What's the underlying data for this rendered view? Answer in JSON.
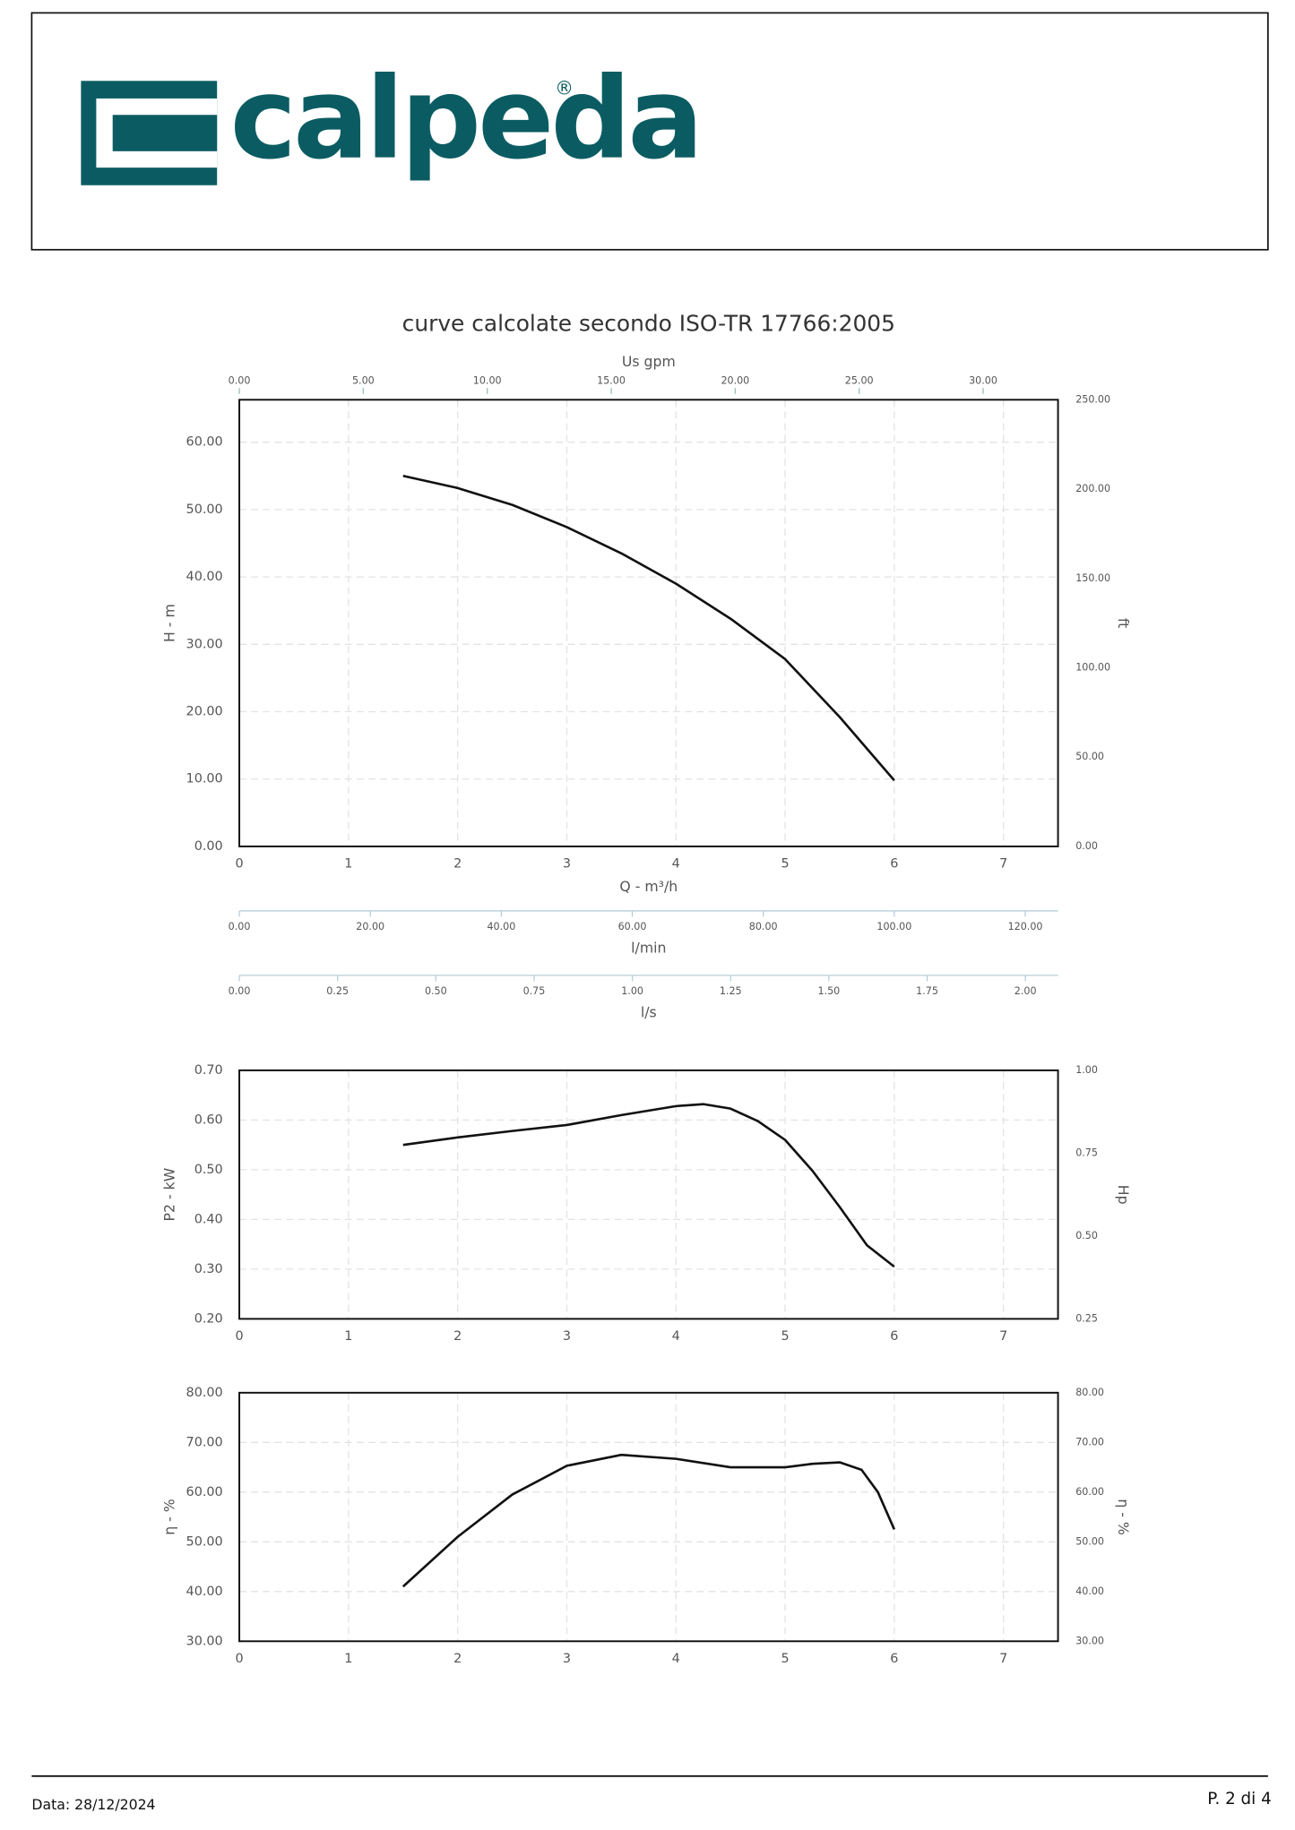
{
  "header": {
    "logo": "calpeda",
    "registered": "®"
  },
  "footer": {
    "date": "Data: 28/12/2024",
    "page": "P. 2 di 4"
  },
  "chart_data": [
    {
      "type": "line",
      "title": "curve calcolate secondo ISO-TR 17766:2005",
      "xlabel": "Q - m³/h",
      "ylabel": "H - m",
      "y2label": "ft",
      "x2label": "Us gpm",
      "grid": true,
      "xlim": [
        0,
        7.5
      ],
      "xticks": [
        0,
        1,
        2,
        3,
        4,
        5,
        6,
        7
      ],
      "ylim": [
        0,
        66.3
      ],
      "yticks": [
        {
          "value": 0,
          "label": "0.00"
        },
        {
          "value": 10,
          "label": "10.00"
        },
        {
          "value": 20,
          "label": "20.00"
        },
        {
          "value": 30,
          "label": "30.00"
        },
        {
          "value": 40,
          "label": "40.00"
        },
        {
          "value": 50,
          "label": "50.00"
        },
        {
          "value": 60,
          "label": "60.00"
        }
      ],
      "y2lim": [
        0,
        250
      ],
      "y2ticks": [
        {
          "value": 0,
          "label": "0.00"
        },
        {
          "value": 50,
          "label": "50.00"
        },
        {
          "value": 100,
          "label": "100.00"
        },
        {
          "value": 150,
          "label": "150.00"
        },
        {
          "value": 200,
          "label": "200.00"
        },
        {
          "value": 250,
          "label": "250.00"
        }
      ],
      "x2lim": [
        0,
        33.02
      ],
      "x2ticks": [
        {
          "value": 0,
          "label": "0.00"
        },
        {
          "value": 5,
          "label": "5.00"
        },
        {
          "value": 10,
          "label": "10.00"
        },
        {
          "value": 15,
          "label": "15.00"
        },
        {
          "value": 20,
          "label": "20.00"
        },
        {
          "value": 25,
          "label": "25.00"
        },
        {
          "value": 30,
          "label": "30.00"
        }
      ],
      "extra_axes": [
        {
          "label": "l/min",
          "lim": [
            0,
            125
          ],
          "ticks": [
            {
              "value": 0,
              "label": "0.00"
            },
            {
              "value": 20,
              "label": "20.00"
            },
            {
              "value": 40,
              "label": "40.00"
            },
            {
              "value": 60,
              "label": "60.00"
            },
            {
              "value": 80,
              "label": "80.00"
            },
            {
              "value": 100,
              "label": "100.00"
            },
            {
              "value": 120,
              "label": "120.00"
            }
          ]
        },
        {
          "label": "l/s",
          "lim": [
            0,
            2.083
          ],
          "ticks": [
            {
              "value": 0,
              "label": "0.00"
            },
            {
              "value": 0.25,
              "label": "0.25"
            },
            {
              "value": 0.5,
              "label": "0.50"
            },
            {
              "value": 0.75,
              "label": "0.75"
            },
            {
              "value": 1,
              "label": "1.00"
            },
            {
              "value": 1.25,
              "label": "1.25"
            },
            {
              "value": 1.5,
              "label": "1.50"
            },
            {
              "value": 1.75,
              "label": "1.75"
            },
            {
              "value": 2,
              "label": "2.00"
            }
          ]
        }
      ],
      "x": [
        1.5,
        2,
        2.5,
        3,
        3.5,
        4,
        4.5,
        5,
        5.5,
        6
      ],
      "series": [
        {
          "color": "#111111",
          "values": [
            55,
            53.2,
            50.7,
            47.4,
            43.5,
            39.0,
            33.8,
            27.8,
            19.2,
            9.8
          ]
        }
      ]
    },
    {
      "type": "line",
      "ylabel": "P2 - kW",
      "y2label": "Hp",
      "grid": true,
      "xlim": [
        0,
        7.5
      ],
      "xticks": [
        0,
        1,
        2,
        3,
        4,
        5,
        6,
        7
      ],
      "ylim": [
        0.2,
        0.7
      ],
      "yticks": [
        {
          "value": 0.2,
          "label": "0.20"
        },
        {
          "value": 0.3,
          "label": "0.30"
        },
        {
          "value": 0.4,
          "label": "0.40"
        },
        {
          "value": 0.5,
          "label": "0.50"
        },
        {
          "value": 0.6,
          "label": "0.60"
        },
        {
          "value": 0.7,
          "label": "0.70"
        }
      ],
      "y2lim": [
        0.25,
        1
      ],
      "y2ticks": [
        {
          "value": 0.25,
          "label": "0.25"
        },
        {
          "value": 0.5,
          "label": "0.50"
        },
        {
          "value": 0.75,
          "label": "0.75"
        },
        {
          "value": 1,
          "label": "1.00"
        }
      ],
      "x": [
        1.5,
        2,
        2.5,
        3,
        3.5,
        4,
        4.25,
        4.5,
        4.75,
        5,
        5.25,
        5.5,
        5.75,
        6
      ],
      "series": [
        {
          "color": "#111111",
          "values": [
            0.55,
            0.565,
            0.578,
            0.59,
            0.61,
            0.628,
            0.632,
            0.623,
            0.598,
            0.56,
            0.498,
            0.425,
            0.348,
            0.305
          ]
        }
      ]
    },
    {
      "type": "line",
      "ylabel": "η - %",
      "y2label": "η - %",
      "grid": true,
      "xlim": [
        0,
        7.5
      ],
      "xticks": [
        0,
        1,
        2,
        3,
        4,
        5,
        6,
        7
      ],
      "ylim": [
        30,
        80
      ],
      "yticks": [
        {
          "value": 30,
          "label": "30.00"
        },
        {
          "value": 40,
          "label": "40.00"
        },
        {
          "value": 50,
          "label": "50.00"
        },
        {
          "value": 60,
          "label": "60.00"
        },
        {
          "value": 70,
          "label": "70.00"
        },
        {
          "value": 80,
          "label": "80.00"
        }
      ],
      "y2lim": [
        30,
        80
      ],
      "y2ticks": [
        {
          "value": 30,
          "label": "30.00"
        },
        {
          "value": 40,
          "label": "40.00"
        },
        {
          "value": 50,
          "label": "50.00"
        },
        {
          "value": 60,
          "label": "60.00"
        },
        {
          "value": 70,
          "label": "70.00"
        },
        {
          "value": 80,
          "label": "80.00"
        }
      ],
      "x": [
        1.5,
        2,
        2.5,
        3,
        3.5,
        4,
        4.5,
        5,
        5.25,
        5.5,
        5.7,
        5.85,
        6
      ],
      "series": [
        {
          "color": "#111111",
          "values": [
            41,
            51,
            59.5,
            65.3,
            67.5,
            66.7,
            65,
            65,
            65.7,
            66,
            64.5,
            60,
            52.5
          ]
        }
      ]
    }
  ]
}
